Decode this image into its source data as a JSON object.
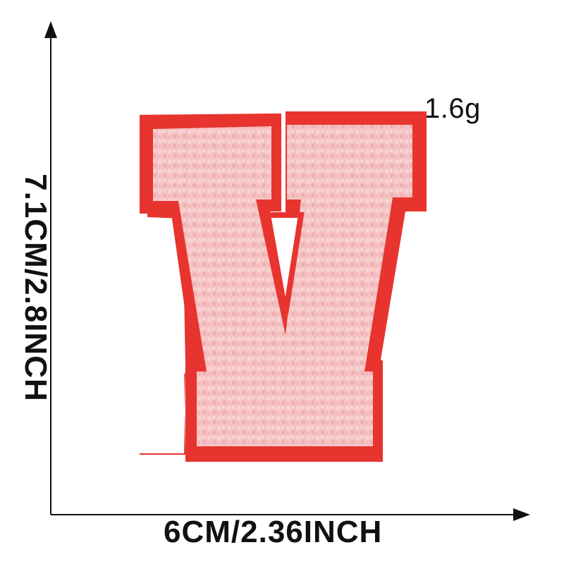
{
  "weight": "1.6g",
  "width_label": "6CM/2.36INCH",
  "height_label": "7.1CM/2.8INCH",
  "patch": {
    "letter": "V",
    "felt_color": "#e8342f",
    "chenille_color": "#f6c3c4"
  }
}
